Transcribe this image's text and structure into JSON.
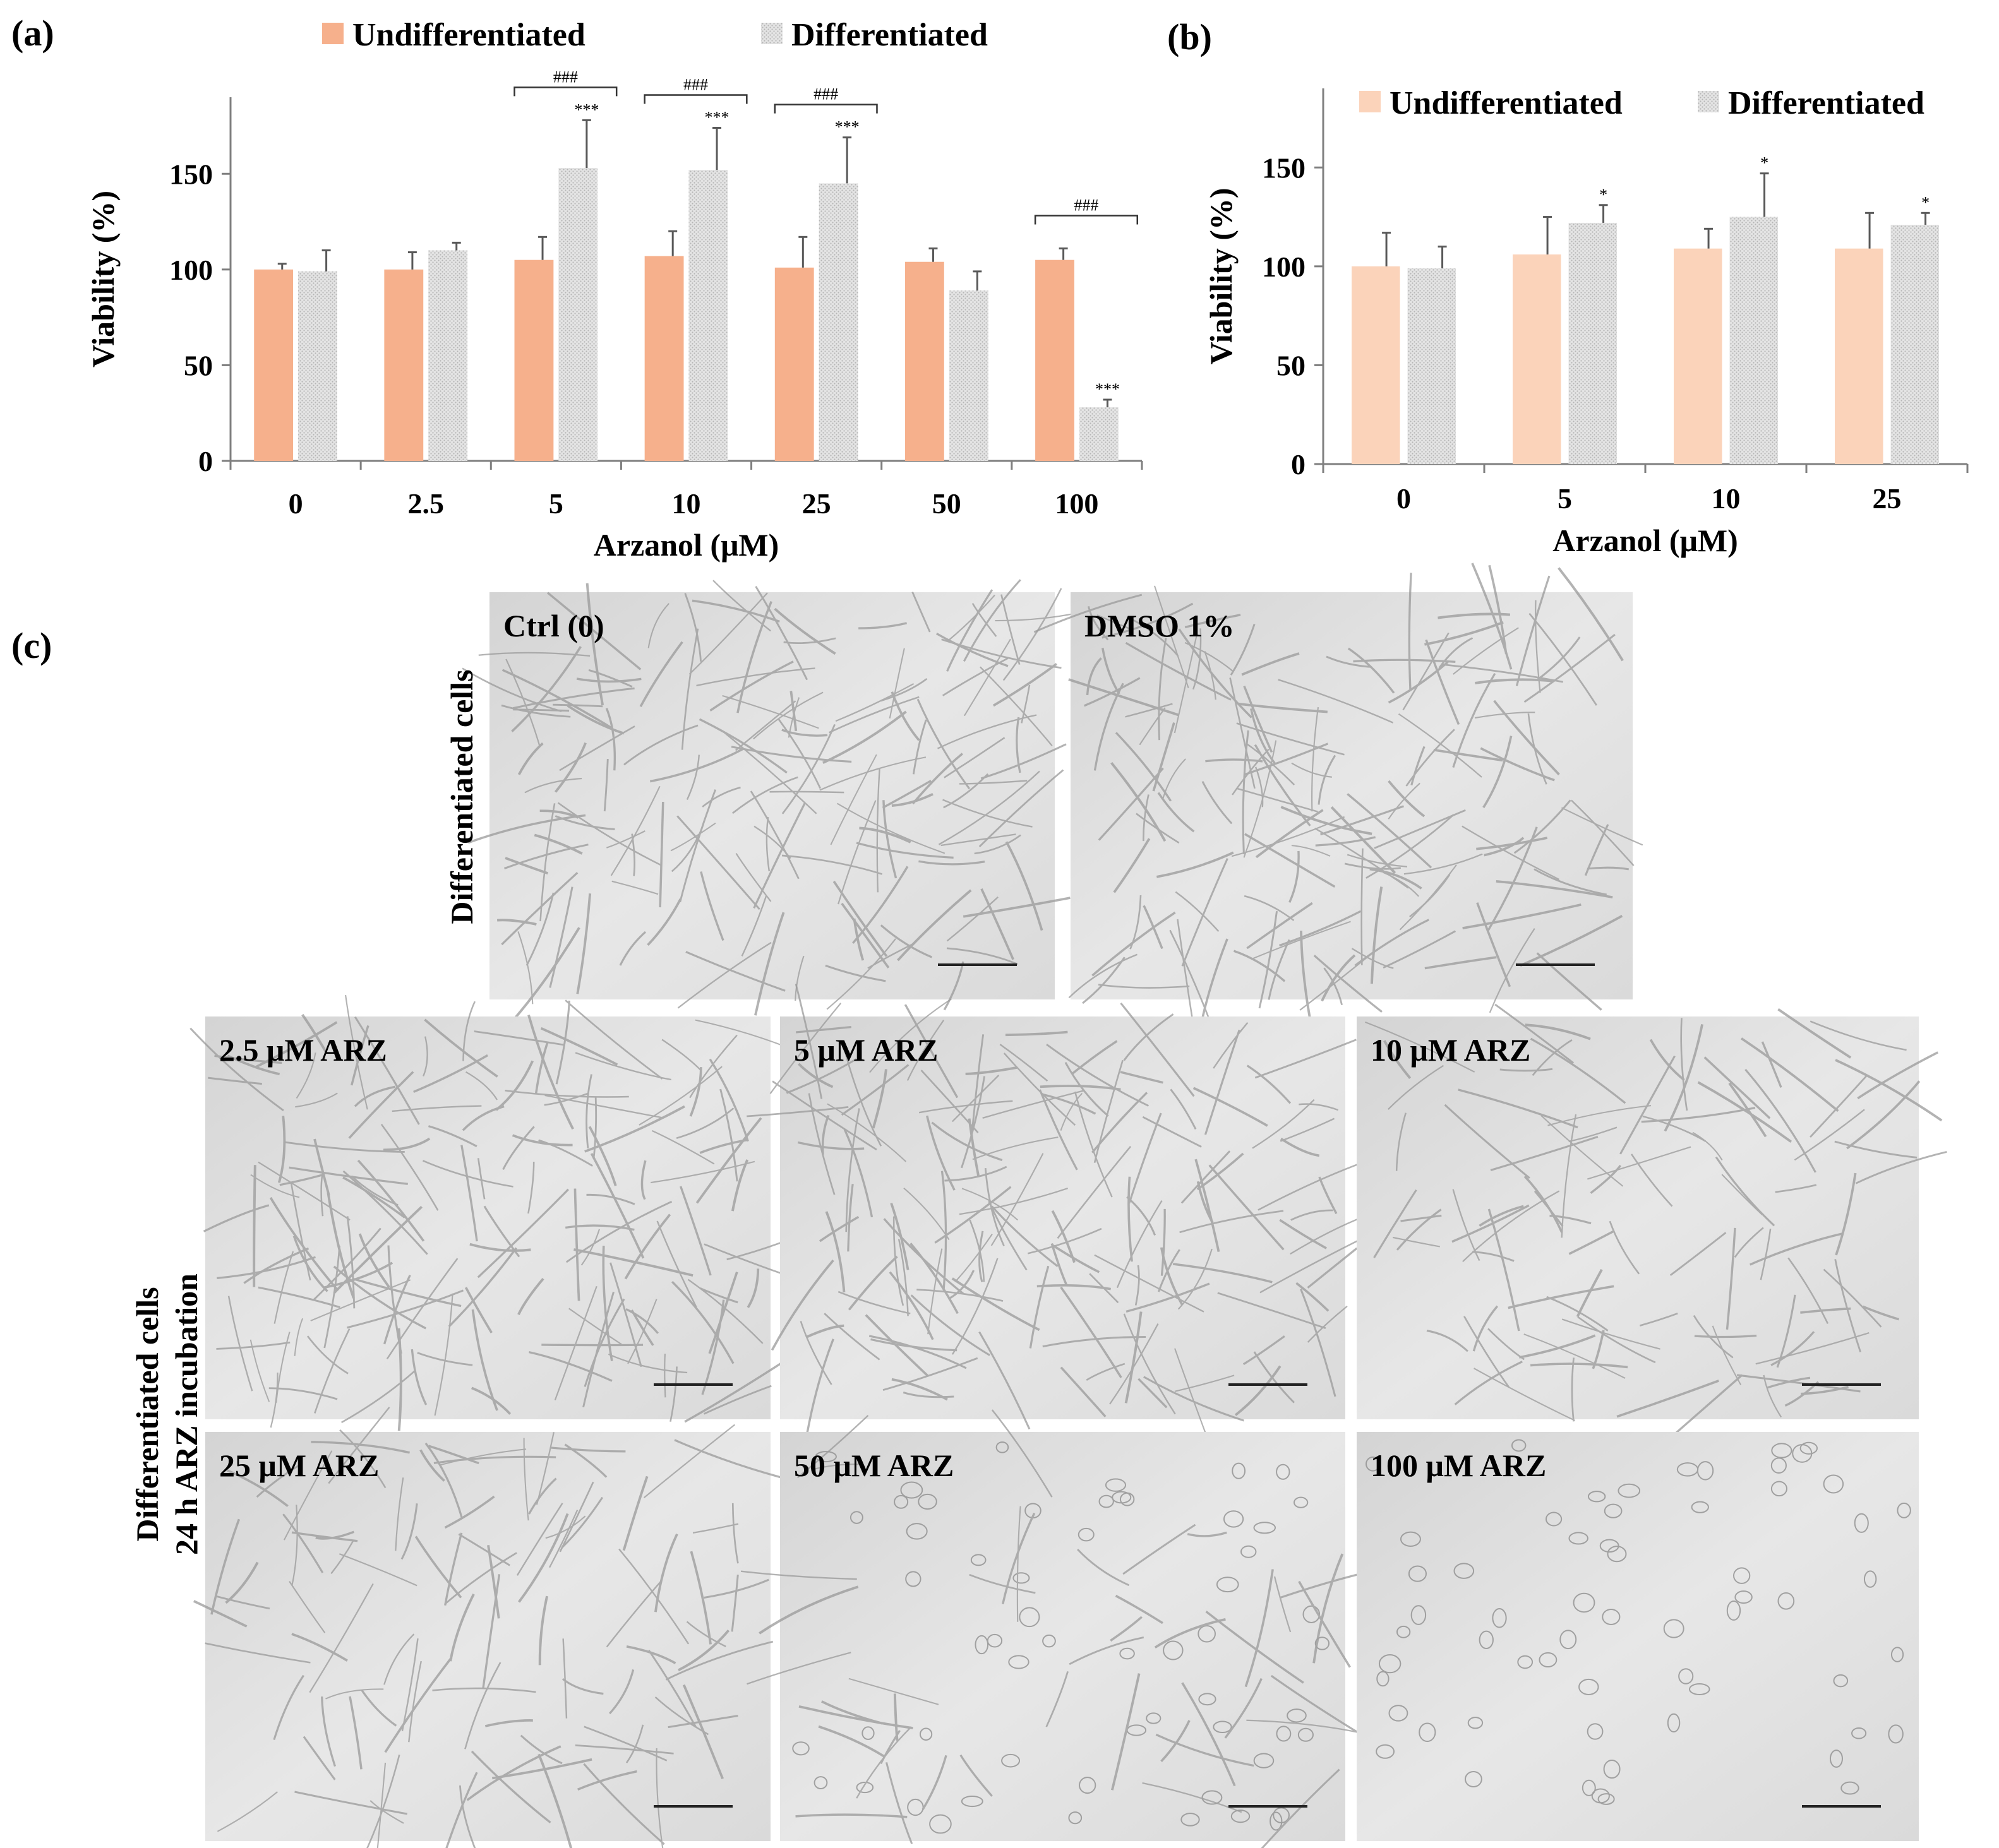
{
  "panel_labels": {
    "a": "(a)",
    "b": "(b)",
    "c": "(c)"
  },
  "colors": {
    "undiff_a": "#F6B08C",
    "undiff_b": "#FBD3BA",
    "diff": "#D9D9D9",
    "axis": "#7F7F7F",
    "text": "#111111"
  },
  "chart_data": [
    {
      "type": "bar",
      "panel": "(a)",
      "title": "",
      "xlabel": "Arzanol (μM)",
      "ylabel": "Viability (%)",
      "ylim": [
        0,
        190
      ],
      "yticks": [
        0,
        50,
        100,
        150
      ],
      "grid": false,
      "legend_position": "top",
      "categories": [
        "0",
        "2.5",
        "5",
        "10",
        "25",
        "50",
        "100"
      ],
      "series": [
        {
          "name": "Undifferentiated",
          "values": [
            100,
            100,
            105,
            107,
            101,
            104,
            105
          ],
          "errors": [
            3,
            9,
            12,
            13,
            16,
            7,
            6
          ]
        },
        {
          "name": "Differentiated",
          "values": [
            99,
            110,
            153,
            152,
            145,
            89,
            28
          ],
          "errors": [
            11,
            4,
            25,
            22,
            24,
            10,
            4
          ]
        }
      ],
      "annotations": [
        {
          "category": "5",
          "series": "Differentiated",
          "text": "***"
        },
        {
          "category": "10",
          "series": "Differentiated",
          "text": "***"
        },
        {
          "category": "25",
          "series": "Differentiated",
          "text": "***"
        },
        {
          "category": "100",
          "series": "Differentiated",
          "text": "***"
        }
      ],
      "brackets": [
        {
          "category": "5",
          "text": "###"
        },
        {
          "category": "10",
          "text": "###"
        },
        {
          "category": "25",
          "text": "###"
        },
        {
          "category": "100",
          "text": "###"
        }
      ]
    },
    {
      "type": "bar",
      "panel": "(b)",
      "title": "",
      "xlabel": "Arzanol (μM)",
      "ylabel": "Viability (%)",
      "ylim": [
        0,
        190
      ],
      "yticks": [
        0,
        50,
        100,
        150
      ],
      "grid": false,
      "legend_position": "top",
      "categories": [
        "0",
        "5",
        "10",
        "25"
      ],
      "series": [
        {
          "name": "Undifferentiated",
          "values": [
            100,
            106,
            109,
            109
          ],
          "errors": [
            17,
            19,
            10,
            18
          ]
        },
        {
          "name": "Differentiated",
          "values": [
            99,
            122,
            125,
            121
          ],
          "errors": [
            11,
            9,
            22,
            6
          ]
        }
      ],
      "annotations": [
        {
          "category": "5",
          "series": "Differentiated",
          "text": "*"
        },
        {
          "category": "10",
          "series": "Differentiated",
          "text": "*"
        },
        {
          "category": "25",
          "series": "Differentiated",
          "text": "*"
        }
      ]
    }
  ],
  "micrographs": {
    "row_labels": {
      "top": [
        "Differentiated cells"
      ],
      "bottom": [
        "Differentiated cells",
        "24 h ARZ incubation"
      ]
    },
    "images": [
      {
        "label": "Ctrl (0)",
        "density": "high",
        "cell_shape": "elongated"
      },
      {
        "label": "DMSO 1%",
        "density": "high",
        "cell_shape": "elongated"
      },
      {
        "label": "2.5 μM ARZ",
        "density": "high",
        "cell_shape": "elongated"
      },
      {
        "label": "5 μM ARZ",
        "density": "high",
        "cell_shape": "elongated"
      },
      {
        "label": "10 μM ARZ",
        "density": "medium",
        "cell_shape": "elongated"
      },
      {
        "label": "25 μM ARZ",
        "density": "medium",
        "cell_shape": "elongated"
      },
      {
        "label": "50 μM ARZ",
        "density": "medium",
        "cell_shape": "mixed"
      },
      {
        "label": "100 μM ARZ",
        "density": "low",
        "cell_shape": "rounded"
      }
    ]
  }
}
